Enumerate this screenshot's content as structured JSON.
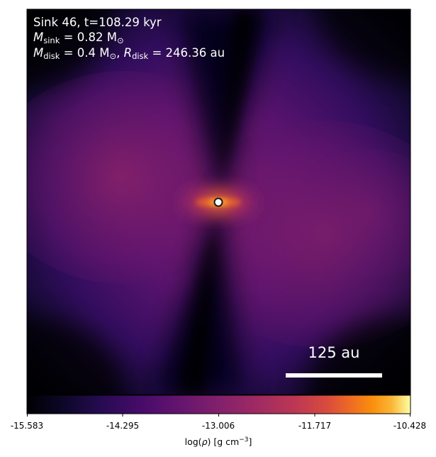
{
  "annotation": {
    "line1": "Sink 46, t=108.29 kyr",
    "line2_symbol": "M",
    "line2_sub": "sink",
    "line2_rest": " = 0.82 M",
    "line2_sun": "⊙",
    "line3_symbol": "M",
    "line3_sub": "disk",
    "line3_mid": " = 0.4 M",
    "line3_sun": "⊙",
    "line3_sep": ", ",
    "line3_symbol2": "R",
    "line3_sub2": "disk",
    "line3_rest": " = 246.36 au"
  },
  "scalebar": {
    "label": "125 au"
  },
  "colorbar": {
    "colormap": "inferno",
    "ticks": [
      "-15.583",
      "-14.295",
      "-13.006",
      "-11.717",
      "-10.428"
    ],
    "label_prefix": "log(",
    "label_rho": "ρ",
    "label_suffix": ") [g cm",
    "label_exp": "−3",
    "label_end": "]"
  },
  "colors": {
    "background": "#000004",
    "sink_marker_fill": "#ffffff",
    "sink_marker_edge": "#1a1a1a",
    "text": "#ffffff"
  }
}
